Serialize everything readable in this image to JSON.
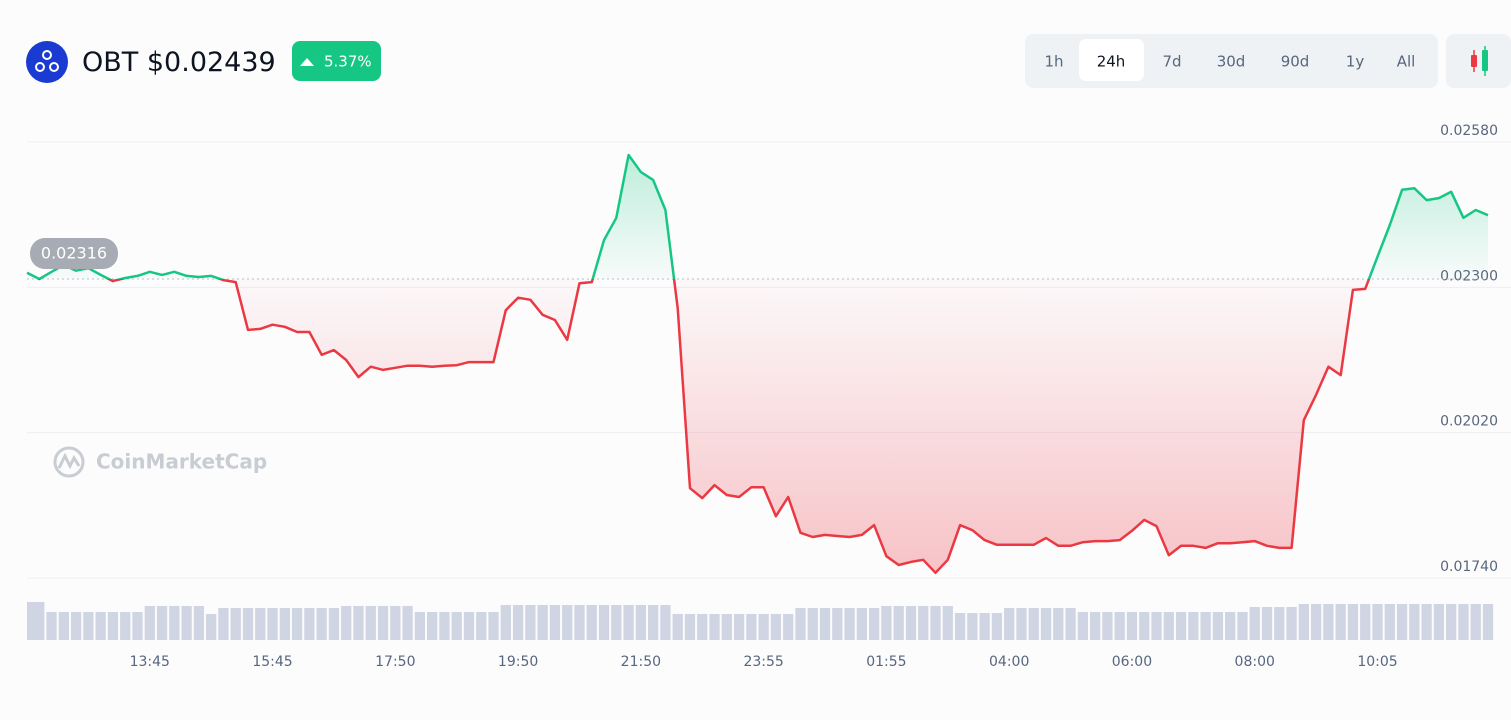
{
  "header": {
    "symbol": "OBT",
    "price": "$0.02439",
    "change": "5.37%"
  },
  "timeframes": {
    "options": [
      "1h",
      "24h",
      "7d",
      "30d",
      "90d",
      "1y",
      "All"
    ],
    "selected": "24h"
  },
  "watermark": "CoinMarketCap",
  "chart_data": {
    "type": "line",
    "categories": [
      null,
      null,
      null,
      null,
      null,
      null,
      null,
      null,
      null,
      null,
      "13:45",
      null,
      null,
      null,
      null,
      null,
      null,
      null,
      null,
      null,
      "15:45",
      null,
      null,
      null,
      null,
      null,
      null,
      null,
      null,
      null,
      "17:50",
      null,
      null,
      null,
      null,
      null,
      null,
      null,
      null,
      null,
      "19:50",
      null,
      null,
      null,
      null,
      null,
      null,
      null,
      null,
      null,
      "21:50",
      null,
      null,
      null,
      null,
      null,
      null,
      null,
      null,
      null,
      "23:55",
      null,
      null,
      null,
      null,
      null,
      null,
      null,
      null,
      null,
      "01:55",
      null,
      null,
      null,
      null,
      null,
      null,
      null,
      null,
      null,
      "04:00",
      null,
      null,
      null,
      null,
      null,
      null,
      null,
      null,
      null,
      "06:00",
      null,
      null,
      null,
      null,
      null,
      null,
      null,
      null,
      null,
      "08:00",
      null,
      null,
      null,
      null,
      null,
      null,
      null,
      null,
      null,
      "10:05",
      null,
      null,
      null,
      null,
      null,
      null,
      null,
      null,
      null
    ],
    "values": [
      0.02328,
      0.02316,
      0.0233,
      0.02343,
      0.02332,
      0.02337,
      0.02324,
      0.02312,
      0.02318,
      0.02322,
      0.0233,
      0.02324,
      0.0233,
      0.02322,
      0.0232,
      0.02322,
      0.02314,
      0.0231,
      0.02218,
      0.0222,
      0.02228,
      0.02224,
      0.02214,
      0.02214,
      0.0217,
      0.02179,
      0.0216,
      0.02127,
      0.02147,
      0.02141,
      0.02145,
      0.02149,
      0.02149,
      0.02147,
      0.02149,
      0.0215,
      0.02156,
      0.02156,
      0.02156,
      0.02256,
      0.0228,
      0.02276,
      0.02247,
      0.02237,
      0.02199,
      0.02308,
      0.0231,
      0.02391,
      0.02434,
      0.02555,
      0.02522,
      0.02507,
      0.02449,
      0.0226,
      0.01913,
      0.01894,
      0.01919,
      0.019,
      0.01896,
      0.01915,
      0.01915,
      0.01859,
      0.01896,
      0.01827,
      0.01819,
      0.01823,
      0.01821,
      0.01819,
      0.01823,
      0.01842,
      0.01782,
      0.01765,
      0.01771,
      0.01775,
      0.0175,
      0.01775,
      0.01842,
      0.01832,
      0.01813,
      0.01804,
      0.01804,
      0.01804,
      0.01804,
      0.01817,
      0.01802,
      0.01802,
      0.01809,
      0.01811,
      0.01811,
      0.01813,
      0.01831,
      0.01852,
      0.0184,
      0.01784,
      0.01802,
      0.01802,
      0.01798,
      0.01807,
      0.01807,
      0.01809,
      0.01811,
      0.01802,
      0.01798,
      0.01798,
      0.02044,
      0.02093,
      0.02147,
      0.02131,
      0.02295,
      0.02297,
      0.02359,
      0.0242,
      0.02488,
      0.02491,
      0.02468,
      0.02472,
      0.02484,
      0.02434,
      0.02449,
      0.02439
    ],
    "baseline": {
      "value": 0.02316,
      "label": "0.02316"
    },
    "up_color": "#16c784",
    "down_color": "#ea3943",
    "ylim": [
      0.0174,
      0.0258
    ],
    "yticks": [
      {
        "value": 0.0174,
        "label": "0.01740"
      },
      {
        "value": 0.0202,
        "label": "0.02020"
      },
      {
        "value": 0.023,
        "label": "0.02300"
      },
      {
        "value": 0.0258,
        "label": "0.02580"
      }
    ],
    "grid": true,
    "volume": {
      "color": "#cfd5e2",
      "ylim": [
        0,
        40
      ],
      "values": [
        38,
        38,
        28,
        28,
        28,
        28,
        28,
        28,
        28,
        28,
        34,
        34,
        34,
        34,
        34,
        26,
        32,
        32,
        32,
        32,
        32,
        32,
        32,
        32,
        32,
        32,
        34,
        34,
        34,
        34,
        34,
        34,
        28,
        28,
        28,
        28,
        28,
        28,
        28,
        35,
        35,
        35,
        35,
        35,
        35,
        35,
        35,
        35,
        35,
        35,
        35,
        35,
        35,
        26,
        26,
        26,
        26,
        26,
        26,
        26,
        26,
        26,
        26,
        32,
        32,
        32,
        32,
        32,
        32,
        32,
        34,
        34,
        34,
        34,
        34,
        34,
        27,
        27,
        27,
        27,
        32,
        32,
        32,
        32,
        32,
        32,
        28,
        28,
        28,
        28,
        28,
        28,
        28,
        28,
        28,
        28,
        28,
        28,
        28,
        28,
        33,
        33,
        33,
        33,
        36,
        36,
        36,
        36,
        36,
        36,
        36,
        36,
        36,
        36,
        36,
        36,
        36,
        36,
        36,
        36
      ]
    }
  }
}
